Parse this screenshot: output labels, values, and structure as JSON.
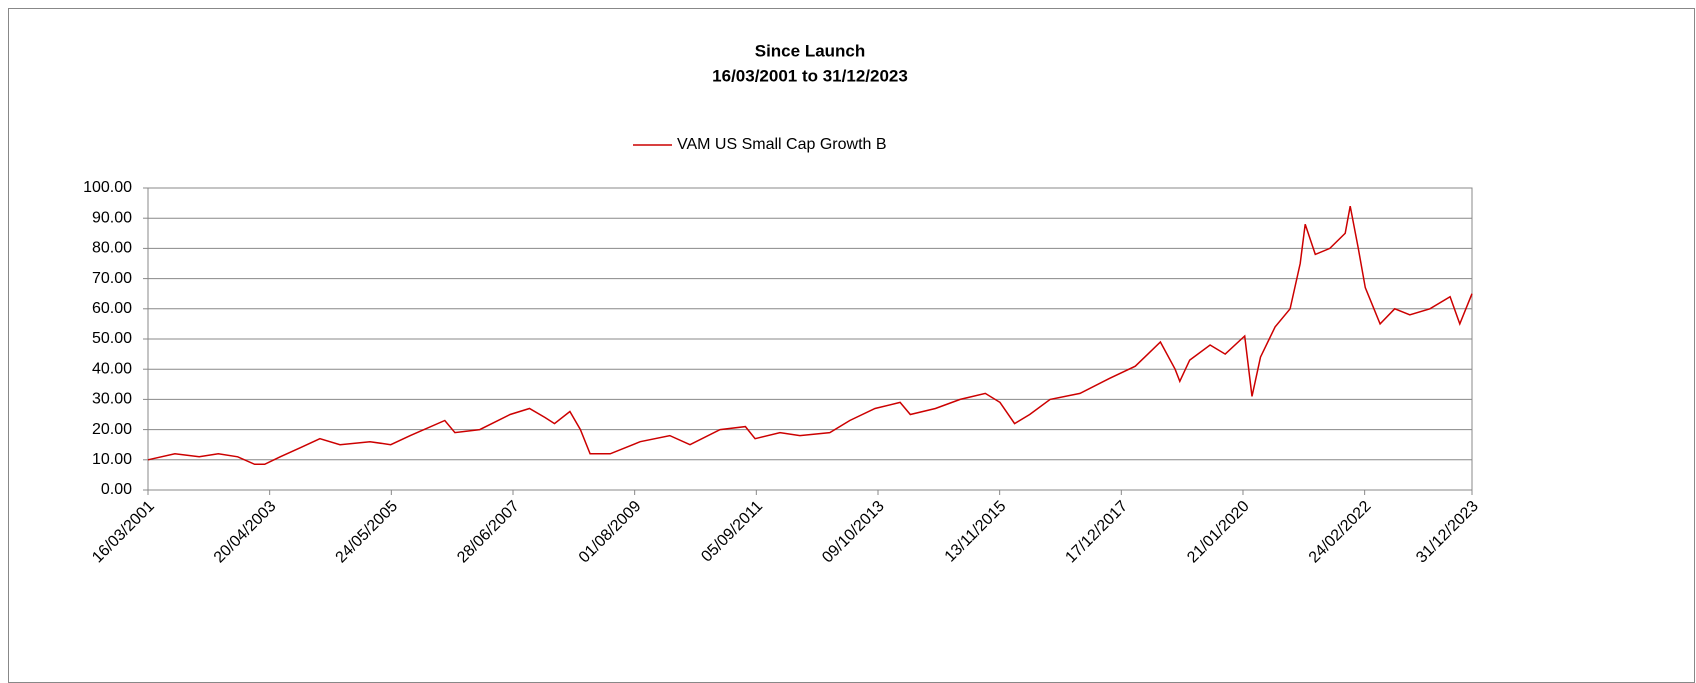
{
  "chart_data": {
    "type": "line",
    "title": "Since Launch",
    "subtitle": "16/03/2001 to 31/12/2023",
    "x": [
      "16/03/2001",
      "01/09/2001",
      "01/02/2002",
      "01/06/2002",
      "01/10/2002",
      "15/01/2003",
      "20/03/2003",
      "25/06/2003",
      "30/10/2003",
      "01/03/2004",
      "05/07/2004",
      "10/01/2005",
      "20/05/2005",
      "20/09/2005",
      "25/04/2006",
      "28/06/2006",
      "01/12/2006",
      "10/06/2007",
      "10/10/2007",
      "15/01/2008",
      "15/03/2008",
      "20/06/2008",
      "25/08/2008",
      "25/10/2008",
      "28/02/2009",
      "05/09/2009",
      "10/03/2010",
      "15/07/2010",
      "20/01/2011",
      "28/06/2011",
      "28/08/2011",
      "01/02/2012",
      "05/06/2012",
      "10/12/2012",
      "15/04/2013",
      "20/09/2013",
      "25/02/2014",
      "30/04/2014",
      "05/10/2014",
      "10/03/2015",
      "15/08/2015",
      "15/11/2015",
      "15/02/2016",
      "20/05/2016",
      "25/09/2016",
      "01/04/2017",
      "05/10/2017",
      "15/03/2018",
      "20/08/2018",
      "20/11/2018",
      "20/12/2018",
      "20/02/2019",
      "28/06/2019",
      "01/10/2019",
      "01/02/2020",
      "18/03/2020",
      "10/05/2020",
      "10/08/2020",
      "12/11/2020",
      "15/01/2021",
      "15/02/2021",
      "20/04/2021",
      "20/07/2021",
      "25/10/2021",
      "25/11/2021",
      "15/01/2022",
      "28/02/2022",
      "01/06/2022",
      "01/09/2022",
      "05/12/2022",
      "10/04/2023",
      "15/08/2023",
      "15/10/2023",
      "31/12/2023"
    ],
    "series": [
      {
        "name": "VAM US Small Cap Growth B",
        "color": "#cc0000",
        "values": [
          10,
          12,
          11,
          12,
          11,
          8.5,
          8.5,
          11,
          14,
          17,
          15,
          16,
          15,
          18,
          23,
          19,
          20,
          25,
          27,
          24,
          22,
          26,
          20,
          12,
          12,
          16,
          18,
          15,
          20,
          21,
          17,
          19,
          18,
          19,
          23,
          27,
          29,
          25,
          27,
          30,
          32,
          29,
          22,
          25,
          30,
          32,
          37,
          41,
          49,
          40,
          36,
          43,
          48,
          45,
          51,
          31,
          44,
          54,
          60,
          75,
          88,
          78,
          80,
          85,
          94,
          80,
          67,
          55,
          60,
          58,
          60,
          64,
          55,
          65
        ]
      }
    ],
    "xlim": [
      "16/03/2001",
      "31/12/2023"
    ],
    "xticks": [
      "16/03/2001",
      "20/04/2003",
      "24/05/2005",
      "28/06/2007",
      "01/08/2009",
      "05/09/2011",
      "09/10/2013",
      "13/11/2015",
      "17/12/2017",
      "21/01/2020",
      "24/02/2022",
      "31/12/2023"
    ],
    "ylim": [
      0,
      100
    ],
    "yticks": [
      {
        "value": 0,
        "label": "0.00"
      },
      {
        "value": 10,
        "label": "10.00"
      },
      {
        "value": 20,
        "label": "20.00"
      },
      {
        "value": 30,
        "label": "30.00"
      },
      {
        "value": 40,
        "label": "40.00"
      },
      {
        "value": 50,
        "label": "50.00"
      },
      {
        "value": 60,
        "label": "60.00"
      },
      {
        "value": 70,
        "label": "70.00"
      },
      {
        "value": 80,
        "label": "80.00"
      },
      {
        "value": 90,
        "label": "90.00"
      },
      {
        "value": 100,
        "label": "100.00"
      }
    ],
    "grid": true,
    "legend": "top"
  }
}
